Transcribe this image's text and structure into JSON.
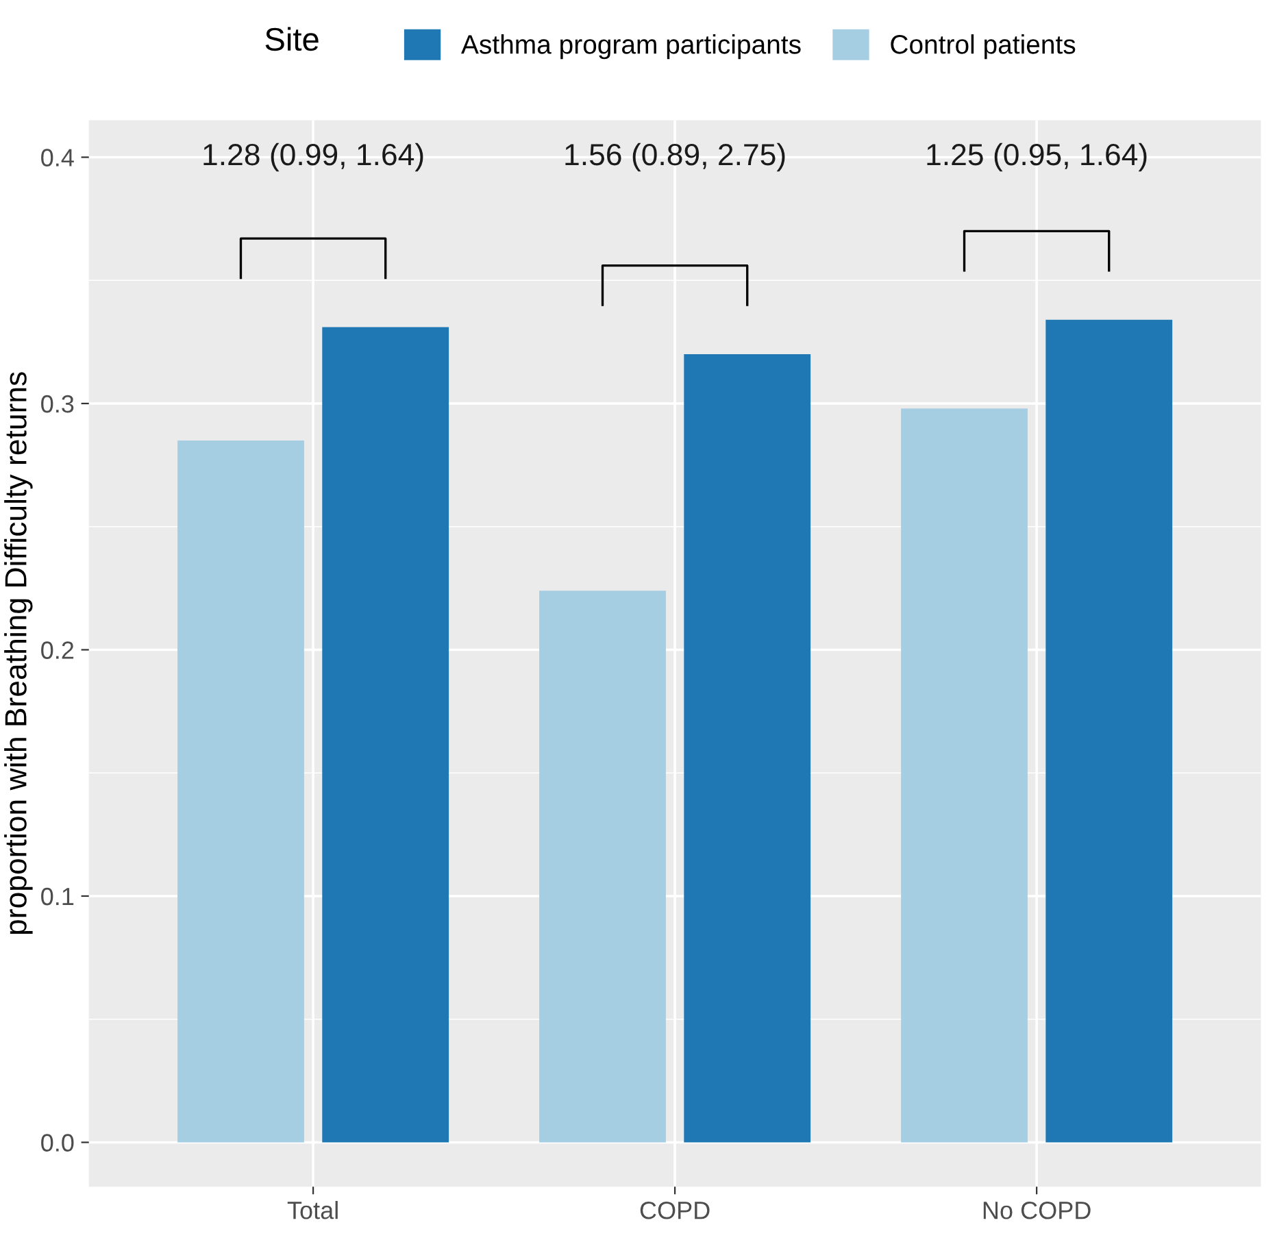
{
  "chart_data": {
    "type": "bar",
    "ylabel": "proportion with Breathing Difficulty returns",
    "legend_title": "Site",
    "categories": [
      "Total",
      "COPD",
      "No COPD"
    ],
    "series": [
      {
        "name": "Control patients",
        "color": "#a6cee3",
        "values": [
          0.285,
          0.224,
          0.298
        ]
      },
      {
        "name": "Asthma program participants",
        "color": "#1f78b4",
        "values": [
          0.331,
          0.32,
          0.334
        ]
      }
    ],
    "ylim": [
      -0.018,
      0.415
    ],
    "yticks": [
      {
        "value": 0,
        "label": "0.0"
      },
      0.1,
      0.2,
      0.3,
      0.4
    ],
    "grid": true,
    "legend": "top",
    "annotations": [
      "1.28 (0.99, 1.64)",
      "1.56 (0.89, 2.75)",
      "1.25 (0.95, 1.64)"
    ]
  }
}
